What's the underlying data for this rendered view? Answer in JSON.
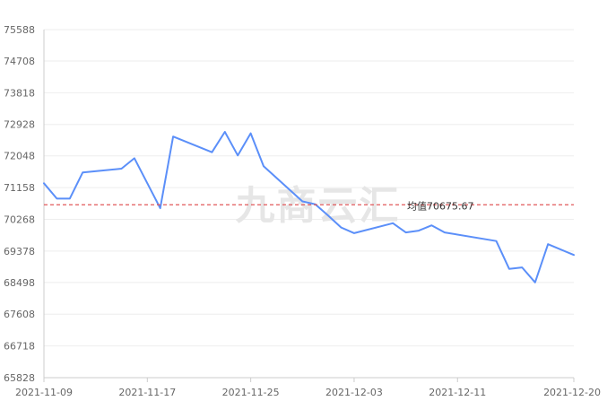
{
  "watermark": "九商云汇",
  "chart_data": {
    "type": "line",
    "title": "",
    "xlabel": "",
    "ylabel": "",
    "ylim": [
      65828,
      75588
    ],
    "y_ticks": [
      "65828",
      "66718",
      "67608",
      "68498",
      "69378",
      "70268",
      "71158",
      "72048",
      "72928",
      "73818",
      "74708",
      "75588"
    ],
    "x_ticks": [
      {
        "date": "2021-11-09",
        "label": "2021-11-09"
      },
      {
        "date": "2021-11-17",
        "label": "2021-11-17"
      },
      {
        "date": "2021-11-25",
        "label": "2021-11-25"
      },
      {
        "date": "2021-12-03",
        "label": "2021-12-03"
      },
      {
        "date": "2021-12-11",
        "label": "2021-12-11"
      },
      {
        "date": "2021-12-20",
        "label": "2021-12-20"
      }
    ],
    "xlim": [
      "2021-11-09",
      "2021-12-20"
    ],
    "grid": true,
    "series": [
      {
        "color": "#5b8ff9",
        "points": [
          {
            "x": "2021-11-09",
            "y": 71280
          },
          {
            "x": "2021-11-10",
            "y": 70850
          },
          {
            "x": "2021-11-11",
            "y": 70850
          },
          {
            "x": "2021-11-12",
            "y": 71580
          },
          {
            "x": "2021-11-15",
            "y": 71690
          },
          {
            "x": "2021-11-16",
            "y": 71980
          },
          {
            "x": "2021-11-18",
            "y": 70580
          },
          {
            "x": "2021-11-19",
            "y": 72590
          },
          {
            "x": "2021-11-22",
            "y": 72150
          },
          {
            "x": "2021-11-23",
            "y": 72720
          },
          {
            "x": "2021-11-24",
            "y": 72060
          },
          {
            "x": "2021-11-25",
            "y": 72680
          },
          {
            "x": "2021-11-26",
            "y": 71760
          },
          {
            "x": "2021-11-29",
            "y": 70770
          },
          {
            "x": "2021-11-30",
            "y": 70690
          },
          {
            "x": "2021-12-01",
            "y": 70370
          },
          {
            "x": "2021-12-02",
            "y": 70040
          },
          {
            "x": "2021-12-03",
            "y": 69880
          },
          {
            "x": "2021-12-06",
            "y": 70160
          },
          {
            "x": "2021-12-07",
            "y": 69900
          },
          {
            "x": "2021-12-08",
            "y": 69950
          },
          {
            "x": "2021-12-09",
            "y": 70100
          },
          {
            "x": "2021-12-10",
            "y": 69900
          },
          {
            "x": "2021-12-14",
            "y": 69660
          },
          {
            "x": "2021-12-15",
            "y": 68880
          },
          {
            "x": "2021-12-16",
            "y": 68920
          },
          {
            "x": "2021-12-17",
            "y": 68500
          },
          {
            "x": "2021-12-18",
            "y": 69570
          },
          {
            "x": "2021-12-20",
            "y": 69270
          }
        ]
      }
    ],
    "mean_line": {
      "value": 70675.67,
      "label": "均值70675.67",
      "color": "#e15759"
    },
    "colors": {
      "line": "#5b8ff9",
      "grid": "#eeeeee",
      "axis": "#cccccc"
    }
  }
}
